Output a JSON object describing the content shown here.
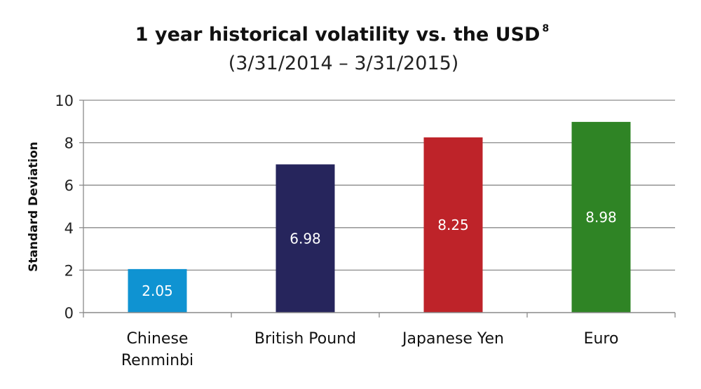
{
  "chart_data": {
    "type": "bar",
    "title": "1 year historical volatility vs. the USD",
    "title_superscript": "8",
    "subtitle": "(3/31/2014 – 3/31/2015)",
    "xlabel": "",
    "ylabel": "Standard Deviation",
    "ylim": [
      0,
      10
    ],
    "yticks": [
      0,
      2,
      4,
      6,
      8,
      10
    ],
    "grid": true,
    "categories": [
      "Chinese Renminbi",
      "British Pound",
      "Japanese Yen",
      "Euro"
    ],
    "category_lines": [
      [
        "Chinese",
        "Renminbi"
      ],
      [
        "British Pound"
      ],
      [
        "Japanese Yen"
      ],
      [
        "Euro"
      ]
    ],
    "values": [
      2.05,
      6.98,
      8.25,
      8.98
    ],
    "data_labels": [
      "2.05",
      "6.98",
      "8.25",
      "8.98"
    ],
    "colors": [
      "#0f93d2",
      "#26255c",
      "#be2329",
      "#2f8425"
    ]
  }
}
